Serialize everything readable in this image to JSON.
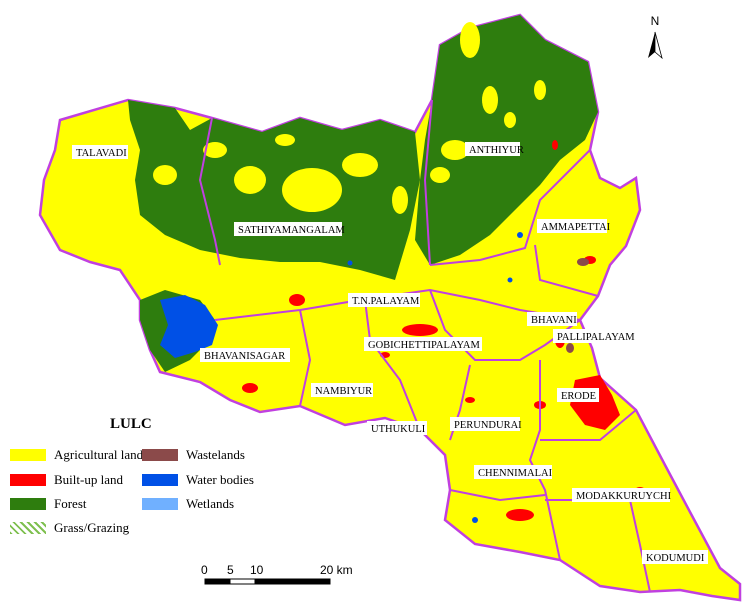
{
  "legend": {
    "title": "LULC",
    "items": [
      {
        "label": "Agricultural land",
        "color": "#ffff00"
      },
      {
        "label": "Wastelands",
        "color": "#8b4a4a"
      },
      {
        "label": "Built-up land",
        "color": "#ff0000"
      },
      {
        "label": "Water bodies",
        "color": "#0050e6"
      },
      {
        "label": "Forest",
        "color": "#2e7d0e"
      },
      {
        "label": "Wetlands",
        "color": "#70b0ff"
      },
      {
        "label": "Grass/Grazing",
        "color": "#7fc050"
      }
    ]
  },
  "places": [
    "TALAVADI",
    "ANTHIYUR",
    "SATHIYAMANGALAM",
    "AMMAPETTAI",
    "T.N.PALAYAM",
    "BHAVANI",
    "PALLIPALAYAM",
    "GOBICHETTIPALAYAM",
    "BHAVANISAGAR",
    "NAMBIYUR",
    "ERODE",
    "UTHUKULI",
    "PERUNDURAI",
    "CHENNIMALAI",
    "MODAKKURUYCHI",
    "KODUMUDI"
  ],
  "north": {
    "letter": "N"
  },
  "scale": {
    "ticks": [
      "0",
      "5",
      "10",
      "20 km"
    ]
  },
  "colors": {
    "boundary": "#c040e0",
    "agri": "#ffff00",
    "forest": "#2e7d0e",
    "builtup": "#ff0000",
    "water": "#0050e6"
  }
}
